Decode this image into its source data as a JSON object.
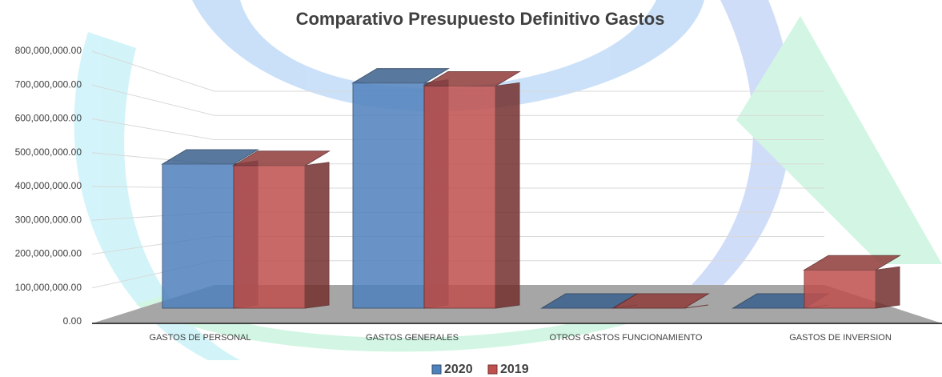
{
  "chart_data": {
    "type": "bar3d",
    "title": "Comparativo Presupuesto Definitivo Gastos",
    "categories": [
      "GASTOS DE PERSONAL",
      "GASTOS GENERALES",
      "OTROS GASTOS FUNCIONAMIENTO",
      "GASTOS DE INVERSION"
    ],
    "series": [
      {
        "name": "2020",
        "color": "#4f81bd",
        "values": [
          480000000,
          750000000,
          0,
          0
        ]
      },
      {
        "name": "2019",
        "color": "#c0504d",
        "values": [
          475000000,
          740000000,
          0,
          127000000
        ]
      }
    ],
    "ylim": [
      0,
      800000000
    ],
    "yticks": [
      {
        "value": 0,
        "label": "0.00"
      },
      {
        "value": 100000000,
        "label": "100,000,000.00"
      },
      {
        "value": 200000000,
        "label": "200,000,000.00"
      },
      {
        "value": 300000000,
        "label": "300,000,000.00"
      },
      {
        "value": 400000000,
        "label": "400,000,000.00"
      },
      {
        "value": 500000000,
        "label": "500,000,000.00"
      },
      {
        "value": 600000000,
        "label": "600,000,000.00"
      },
      {
        "value": 700000000,
        "label": "700,000,000.00"
      },
      {
        "value": 800000000,
        "label": "800,000,000.00"
      }
    ],
    "grid": true,
    "legend": "bottom"
  }
}
